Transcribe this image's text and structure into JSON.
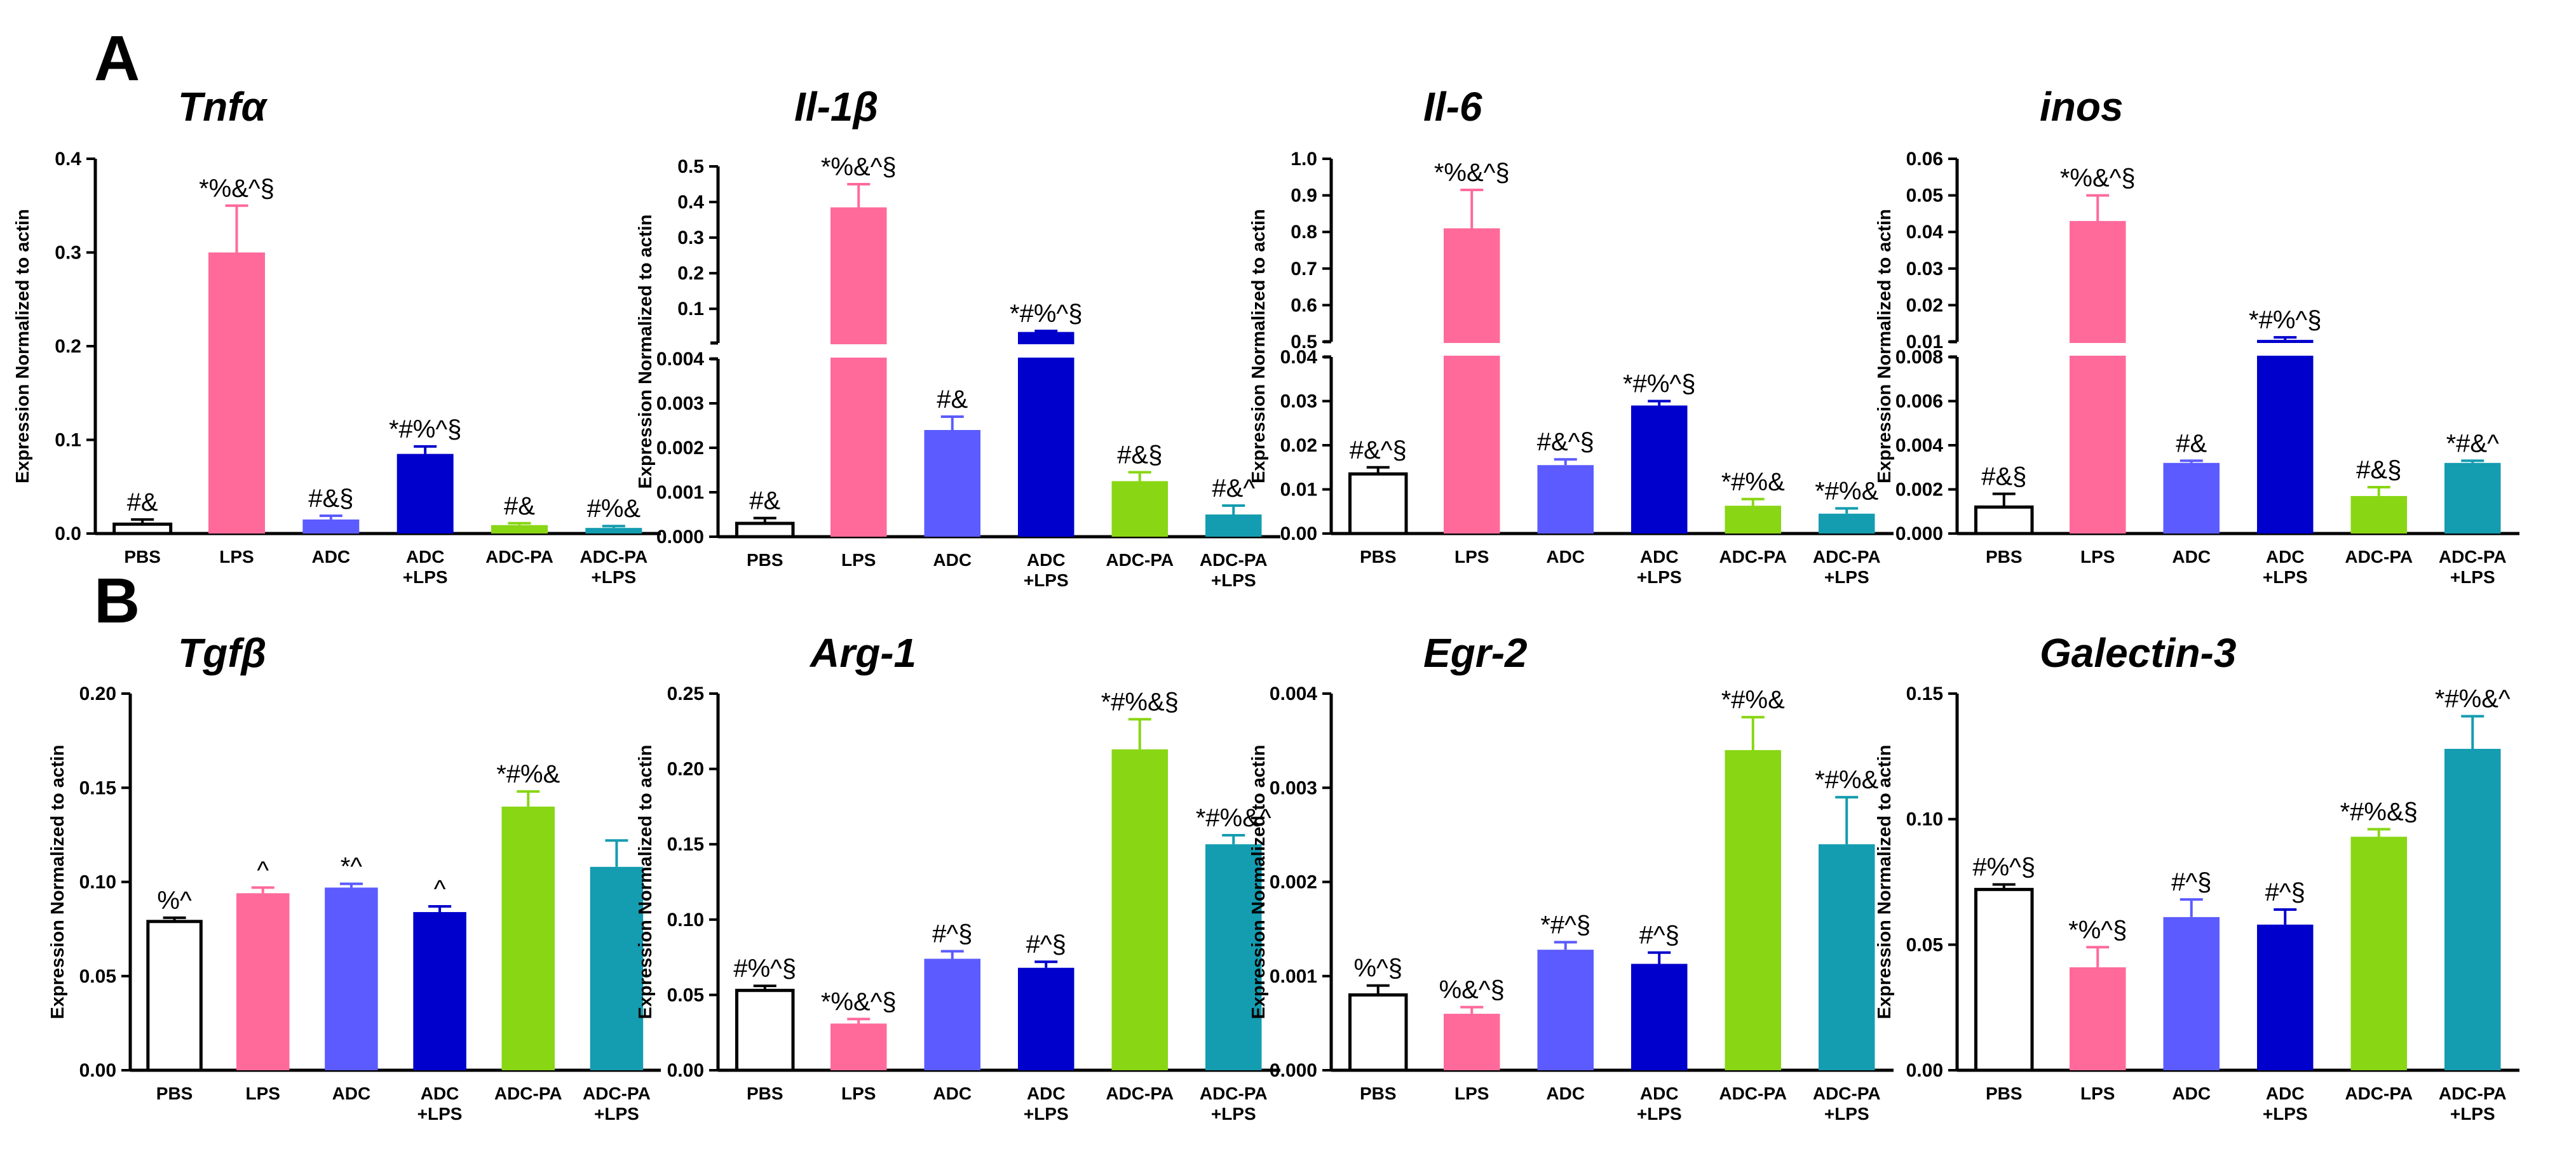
{
  "panel_labels": [
    "A",
    "B"
  ],
  "ylabel": "Expression Normalized to actin",
  "colors": {
    "PBS": "#ffffff",
    "LPS": "#ff6a9b",
    "ADC": "#5b5bff",
    "ADC+LPS": "#0000cc",
    "ADC-PA": "#88d614",
    "ADC-PA+LPS": "#149cb0",
    "axis": "#000000"
  },
  "chart_data": [
    {
      "panel": "A",
      "type": "bar",
      "title": "Tnfα",
      "categories": [
        [
          "PBS"
        ],
        [
          "LPS"
        ],
        [
          "ADC"
        ],
        [
          "ADC",
          "+LPS"
        ],
        [
          "ADC-PA"
        ],
        [
          "ADC-PA",
          "+LPS"
        ]
      ],
      "series": [
        {
          "name": "Tnfα",
          "values": [
            0.01,
            0.3,
            0.015,
            0.085,
            0.009,
            0.006
          ],
          "errors": [
            0.005,
            0.05,
            0.004,
            0.008,
            0.002,
            0.002
          ]
        }
      ],
      "annotations": [
        "#&",
        "*%&^§",
        "#&§",
        "*#%^§",
        "#&",
        "#%&"
      ],
      "ylim": [
        0,
        0.4
      ],
      "yticks": [
        "0.0",
        "0.1",
        "0.2",
        "0.3",
        "0.4"
      ]
    },
    {
      "panel": "A",
      "type": "bar",
      "title": "Il-1β",
      "axis_break": true,
      "categories": [
        [
          "PBS"
        ],
        [
          "LPS"
        ],
        [
          "ADC"
        ],
        [
          "ADC",
          "+LPS"
        ],
        [
          "ADC-PA"
        ],
        [
          "ADC-PA",
          "+LPS"
        ]
      ],
      "series": [
        {
          "name": "Il-1β",
          "values": [
            0.0003,
            0.385,
            0.0024,
            0.035,
            0.00125,
            0.0005
          ],
          "errors": [
            0.00012,
            0.065,
            0.0003,
            0.003,
            0.0002,
            0.0002
          ]
        }
      ],
      "annotations": [
        "#&",
        "*%&^§",
        "#&",
        "*#%^§",
        "#&§",
        "#&^"
      ],
      "ylim_lower": [
        0,
        0.004
      ],
      "yticks_lower": [
        "0.000",
        "0.001",
        "0.002",
        "0.003",
        "0.004"
      ],
      "ylim_upper": [
        0.004,
        0.5
      ],
      "yticks_upper": [
        "0.1",
        "0.2",
        "0.3",
        "0.4",
        "0.5"
      ]
    },
    {
      "panel": "A",
      "type": "bar",
      "title": "Il-6",
      "axis_break": true,
      "categories": [
        [
          "PBS"
        ],
        [
          "LPS"
        ],
        [
          "ADC"
        ],
        [
          "ADC",
          "+LPS"
        ],
        [
          "ADC-PA"
        ],
        [
          "ADC-PA",
          "+LPS"
        ]
      ],
      "series": [
        {
          "name": "Il-6",
          "values": [
            0.0135,
            0.81,
            0.0155,
            0.029,
            0.0063,
            0.0045
          ],
          "errors": [
            0.0015,
            0.105,
            0.0013,
            0.001,
            0.0015,
            0.0012
          ]
        }
      ],
      "annotations": [
        "#&^§",
        "*%&^§",
        "#&^§",
        "*#%^§",
        "*#%&",
        "*#%&"
      ],
      "ylim_lower": [
        0,
        0.04
      ],
      "yticks_lower": [
        "0.00",
        "0.01",
        "0.02",
        "0.03",
        "0.04"
      ],
      "ylim_upper": [
        0.5,
        1.0
      ],
      "yticks_upper": [
        "0.5",
        "0.6",
        "0.7",
        "0.8",
        "0.9",
        "1.0"
      ]
    },
    {
      "panel": "A",
      "type": "bar",
      "title": "inos",
      "axis_break": true,
      "categories": [
        [
          "PBS"
        ],
        [
          "LPS"
        ],
        [
          "ADC"
        ],
        [
          "ADC",
          "+LPS"
        ],
        [
          "ADC-PA"
        ],
        [
          "ADC-PA",
          "+LPS"
        ]
      ],
      "series": [
        {
          "name": "inos",
          "values": [
            0.0012,
            0.043,
            0.0032,
            0.0105,
            0.0017,
            0.0032
          ],
          "errors": [
            0.0006,
            0.007,
            0.0001,
            0.0007,
            0.0004,
            0.0001
          ]
        }
      ],
      "annotations": [
        "#&§",
        "*%&^§",
        "#&",
        "*#%^§",
        "#&§",
        "*#&^"
      ],
      "ylim_lower": [
        0,
        0.008
      ],
      "yticks_lower": [
        "0.000",
        "0.002",
        "0.004",
        "0.006",
        "0.008"
      ],
      "ylim_upper": [
        0.01,
        0.06
      ],
      "yticks_upper": [
        "0.01",
        "0.02",
        "0.03",
        "0.04",
        "0.05",
        "0.06"
      ]
    },
    {
      "panel": "B",
      "type": "bar",
      "title": "Tgfβ",
      "categories": [
        [
          "PBS"
        ],
        [
          "LPS"
        ],
        [
          "ADC"
        ],
        [
          "ADC",
          "+LPS"
        ],
        [
          "ADC-PA"
        ],
        [
          "ADC-PA",
          "+LPS"
        ]
      ],
      "series": [
        {
          "name": "Tgfβ",
          "values": [
            0.079,
            0.094,
            0.097,
            0.084,
            0.14,
            0.108
          ],
          "errors": [
            0.002,
            0.003,
            0.002,
            0.003,
            0.008,
            0.014
          ]
        }
      ],
      "annotations": [
        "%^",
        "^",
        "*^",
        "^",
        "*#%&",
        ""
      ],
      "ylim": [
        0,
        0.2
      ],
      "yticks": [
        "0.00",
        "0.05",
        "0.10",
        "0.15",
        "0.20"
      ]
    },
    {
      "panel": "B",
      "type": "bar",
      "title": "Arg-1",
      "categories": [
        [
          "PBS"
        ],
        [
          "LPS"
        ],
        [
          "ADC"
        ],
        [
          "ADC",
          "+LPS"
        ],
        [
          "ADC-PA"
        ],
        [
          "ADC-PA",
          "+LPS"
        ]
      ],
      "series": [
        {
          "name": "Arg-1",
          "values": [
            0.053,
            0.031,
            0.074,
            0.068,
            0.213,
            0.15
          ],
          "errors": [
            0.003,
            0.003,
            0.005,
            0.004,
            0.02,
            0.006
          ]
        }
      ],
      "annotations": [
        "#%^§",
        "*%&^§",
        "#^§",
        "#^§",
        "*#%&§",
        "*#%&^"
      ],
      "ylim": [
        0,
        0.25
      ],
      "yticks": [
        "0.00",
        "0.05",
        "0.10",
        "0.15",
        "0.20",
        "0.25"
      ]
    },
    {
      "panel": "B",
      "type": "bar",
      "title": "Egr-2",
      "categories": [
        [
          "PBS"
        ],
        [
          "LPS"
        ],
        [
          "ADC"
        ],
        [
          "ADC",
          "+LPS"
        ],
        [
          "ADC-PA"
        ],
        [
          "ADC-PA",
          "+LPS"
        ]
      ],
      "series": [
        {
          "name": "Egr-2",
          "values": [
            0.0008,
            0.0006,
            0.00128,
            0.00113,
            0.0034,
            0.0024
          ],
          "errors": [
            0.0001,
            7e-05,
            8e-05,
            0.00012,
            0.00035,
            0.0005
          ]
        }
      ],
      "annotations": [
        "%^§",
        "%&^§",
        "*#^§",
        "#^§",
        "*#%&",
        "*#%&"
      ],
      "ylim": [
        0,
        0.004
      ],
      "yticks": [
        "0.000",
        "0.001",
        "0.002",
        "0.003",
        "0.004"
      ]
    },
    {
      "panel": "B",
      "type": "bar",
      "title": "Galectin-3",
      "categories": [
        [
          "PBS"
        ],
        [
          "LPS"
        ],
        [
          "ADC"
        ],
        [
          "ADC",
          "+LPS"
        ],
        [
          "ADC-PA"
        ],
        [
          "ADC-PA",
          "+LPS"
        ]
      ],
      "series": [
        {
          "name": "Galectin-3",
          "values": [
            0.072,
            0.041,
            0.061,
            0.058,
            0.093,
            0.128
          ],
          "errors": [
            0.002,
            0.008,
            0.007,
            0.006,
            0.003,
            0.013
          ]
        }
      ],
      "annotations": [
        "#%^§",
        "*%^§",
        "#^§",
        "#^§",
        "*#%&§",
        "*#%&^"
      ],
      "ylim": [
        0,
        0.15
      ],
      "yticks": [
        "0.00",
        "0.05",
        "0.10",
        "0.15"
      ]
    }
  ]
}
